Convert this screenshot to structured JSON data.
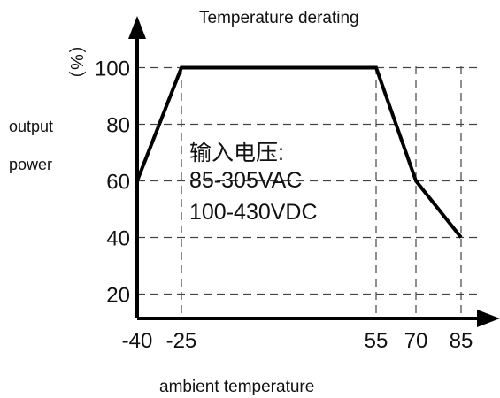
{
  "chart_data": {
    "type": "line",
    "title": "Temperature derating",
    "xlabel": "ambient temperature",
    "ylabel": [
      "output",
      "power"
    ],
    "y_unit": "（%）",
    "x_ticks": [
      "-40",
      "-25",
      "55",
      "70",
      "85"
    ],
    "y_ticks": [
      "20",
      "40",
      "60",
      "80",
      "100"
    ],
    "series": [
      {
        "x": [
          -40,
          -25,
          55,
          70,
          85
        ],
        "y": [
          60,
          100,
          100,
          60,
          40
        ]
      }
    ],
    "xlim": [
      -40,
      90
    ],
    "ylim": [
      0,
      110
    ],
    "grid": "dashed",
    "annotation": [
      "输入电压:",
      "85-305VAC",
      "100-430VDC"
    ]
  }
}
